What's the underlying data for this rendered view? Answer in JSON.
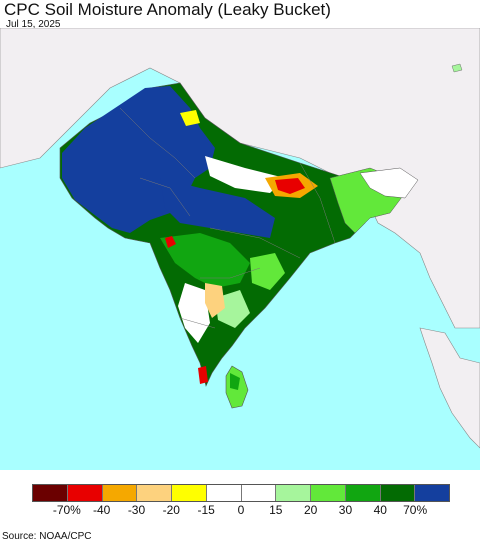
{
  "title": "CPC Soil Moisture Anomaly (Leaky Bucket)",
  "date": "Jul 15, 2025",
  "source": "Source: NOAA/CPC",
  "legend": {
    "colors": [
      "#6b0000",
      "#e80000",
      "#f5a800",
      "#fdd27e",
      "#ffff00",
      "#ffffff",
      "#ffffff",
      "#a6f59c",
      "#62e83a",
      "#11a611",
      "#036b03",
      "#143f9e"
    ],
    "labels": [
      "-70%",
      "-40",
      "-30",
      "-20",
      "-15",
      "0",
      "15",
      "20",
      "30",
      "40",
      "70%"
    ]
  },
  "map_colors": {
    "ocean": "#a9ffff",
    "land_masked": "#f2eff2",
    "border": "#666666"
  }
}
